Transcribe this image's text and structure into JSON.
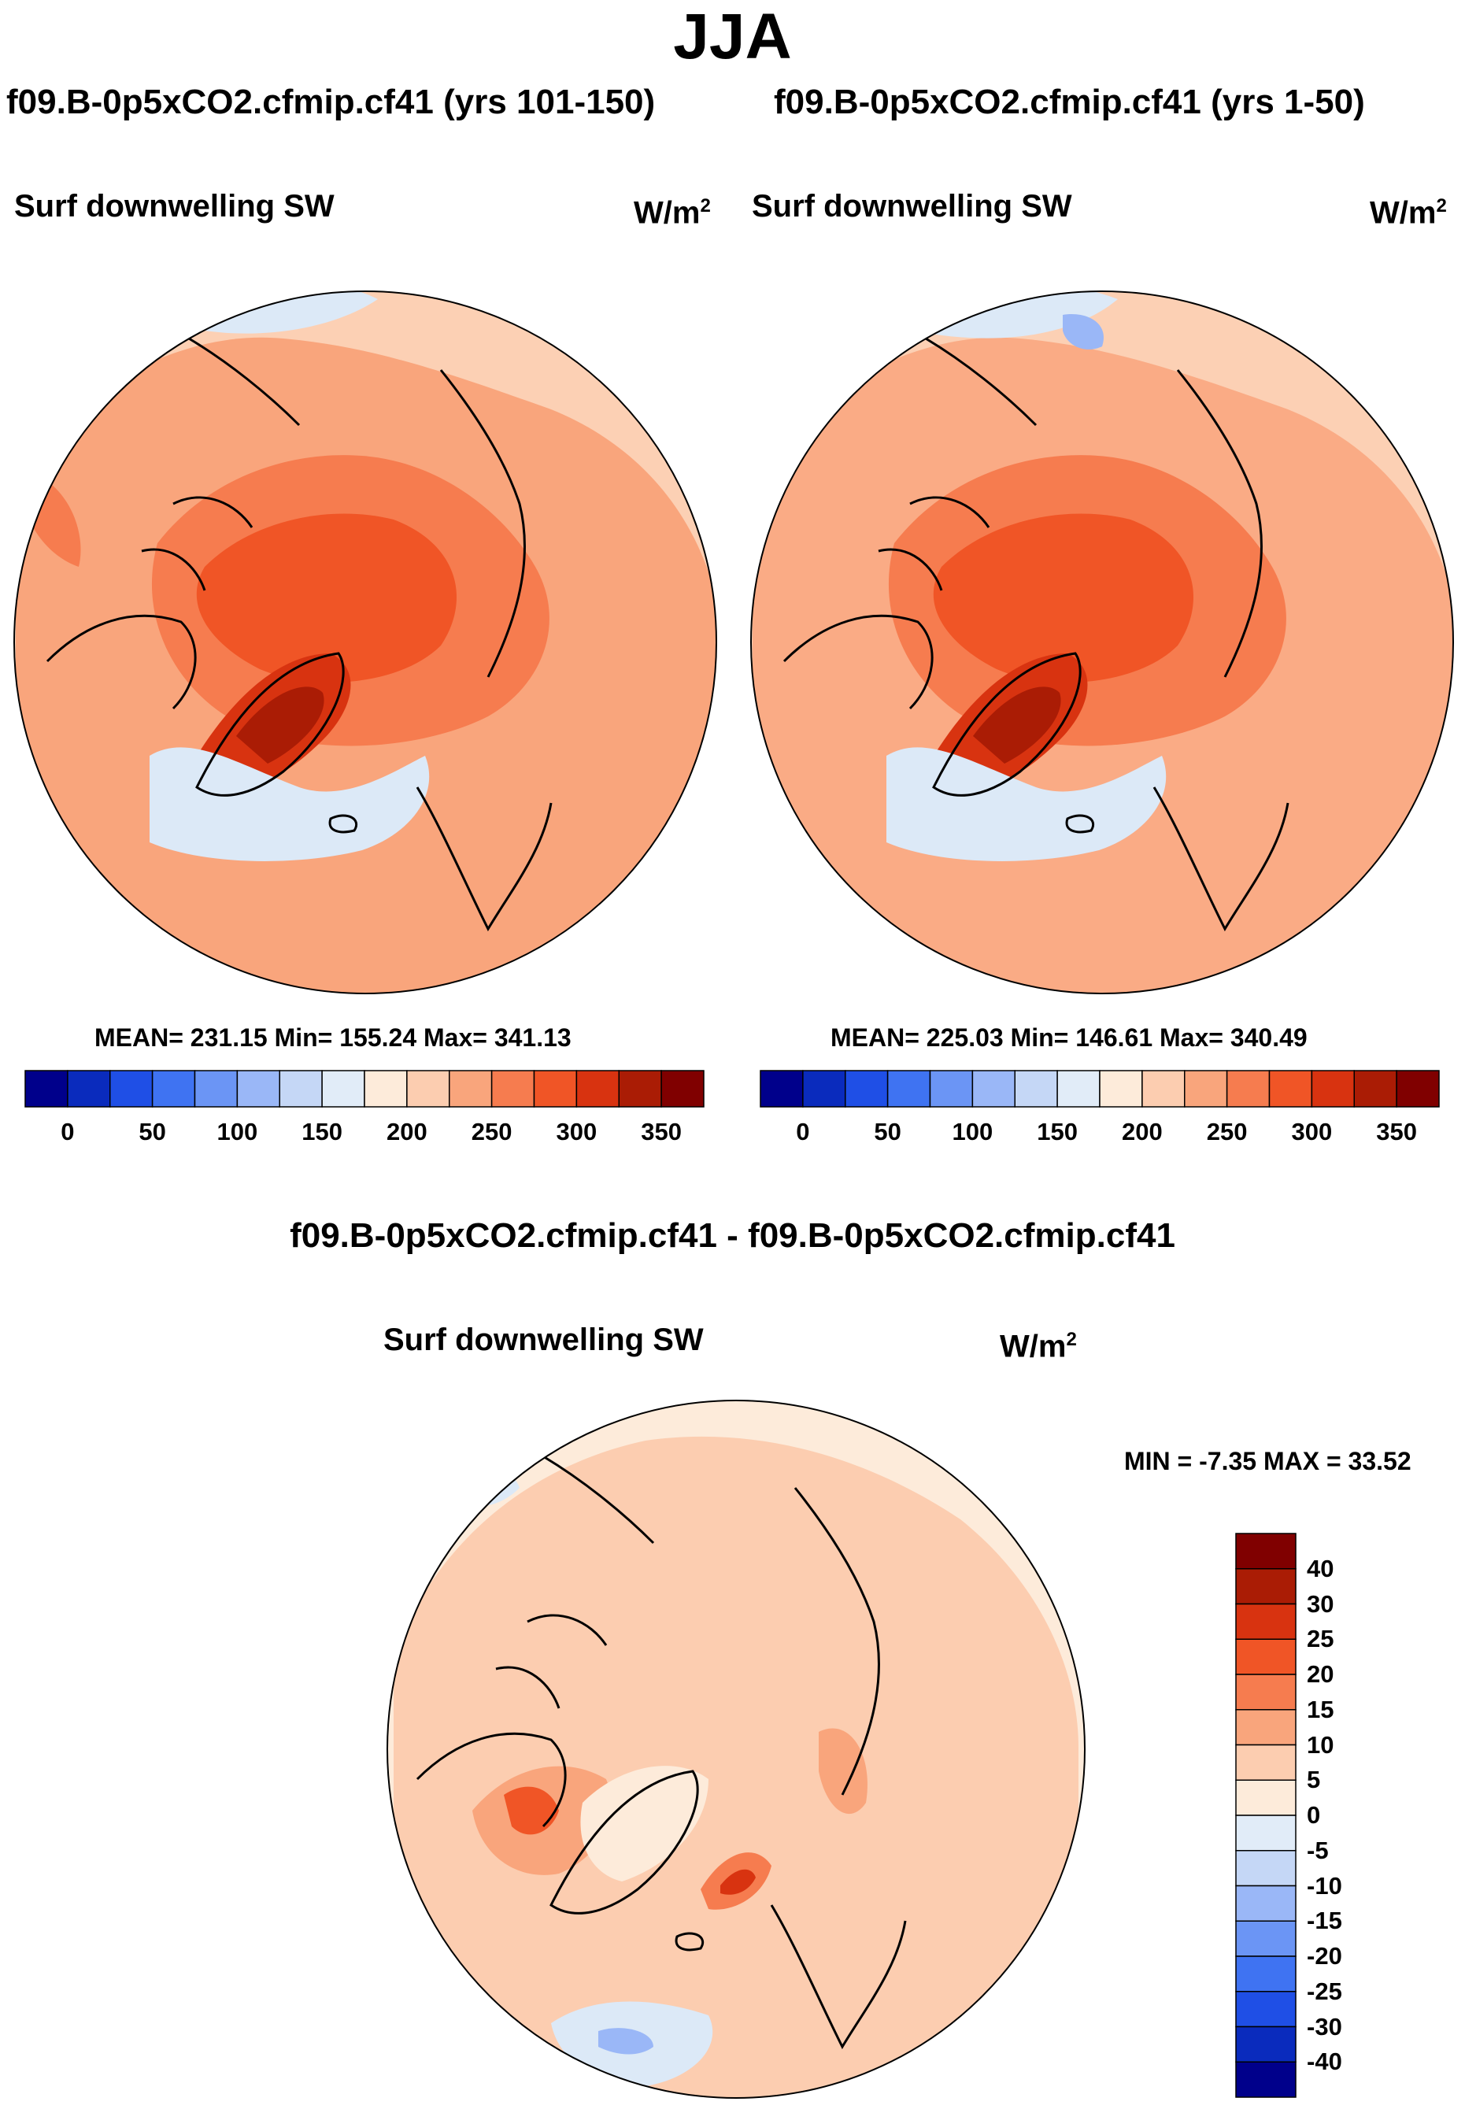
{
  "title": "JJA",
  "panels": [
    {
      "title": "f09.B-0p5xCO2.cfmip.cf41 (yrs 101-150)",
      "variable": "Surf downwelling SW",
      "units": "W/m",
      "units_exp": "2",
      "stats": "MEAN= 231.15   Min= 155.24   Max= 341.13",
      "colorbar_labels": [
        "0",
        "50",
        "100",
        "150",
        "200",
        "250",
        "300",
        "350"
      ]
    },
    {
      "title": "f09.B-0p5xCO2.cfmip.cf41 (yrs 1-50)",
      "variable": "Surf downwelling SW",
      "units": "W/m",
      "units_exp": "2",
      "stats": "MEAN= 225.03   Min= 146.61   Max= 340.49",
      "colorbar_labels": [
        "0",
        "50",
        "100",
        "150",
        "200",
        "250",
        "300",
        "350"
      ]
    }
  ],
  "diff": {
    "title": "f09.B-0p5xCO2.cfmip.cf41 - f09.B-0p5xCO2.cfmip.cf41",
    "variable": "Surf downwelling SW",
    "units": "W/m",
    "units_exp": "2",
    "stats": "MIN =  -7.35 MAX =  33.52",
    "colorbar_labels": [
      "40",
      "30",
      "25",
      "20",
      "15",
      "10",
      "5",
      "0",
      "-5",
      "-10",
      "-15",
      "-20",
      "-25",
      "-30",
      "-40"
    ]
  },
  "chart_data": [
    {
      "type": "heatmap",
      "projection": "north polar stereographic",
      "title": "f09.B-0p5xCO2.cfmip.cf41 (yrs 101-150)",
      "variable": "Surf downwelling SW",
      "units": "W/m2",
      "mean": 231.15,
      "min": 155.24,
      "max": 341.13,
      "levels": [
        0,
        25,
        50,
        75,
        100,
        125,
        150,
        175,
        200,
        225,
        250,
        275,
        300,
        325,
        350
      ],
      "colors": [
        "#00008b",
        "#0a2bbd",
        "#1f4fe6",
        "#3f73f2",
        "#6b95f5",
        "#9ab7f7",
        "#c5d7f6",
        "#e1ecf8",
        "#fdebda",
        "#fccdb0",
        "#f9a57c",
        "#f67c4f",
        "#f05526",
        "#d83310",
        "#aa1c05",
        "#800000"
      ]
    },
    {
      "type": "heatmap",
      "projection": "north polar stereographic",
      "title": "f09.B-0p5xCO2.cfmip.cf41 (yrs 1-50)",
      "variable": "Surf downwelling SW",
      "units": "W/m2",
      "mean": 225.03,
      "min": 146.61,
      "max": 340.49,
      "levels": [
        0,
        25,
        50,
        75,
        100,
        125,
        150,
        175,
        200,
        225,
        250,
        275,
        300,
        325,
        350
      ],
      "colors": [
        "#00008b",
        "#0a2bbd",
        "#1f4fe6",
        "#3f73f2",
        "#6b95f5",
        "#9ab7f7",
        "#c5d7f6",
        "#e1ecf8",
        "#fdebda",
        "#fccdb0",
        "#f9a57c",
        "#f67c4f",
        "#f05526",
        "#d83310",
        "#aa1c05",
        "#800000"
      ]
    },
    {
      "type": "heatmap",
      "projection": "north polar stereographic",
      "title": "f09.B-0p5xCO2.cfmip.cf41 - f09.B-0p5xCO2.cfmip.cf41",
      "variable": "Surf downwelling SW",
      "units": "W/m2",
      "min": -7.35,
      "max": 33.52,
      "levels": [
        -40,
        -30,
        -25,
        -20,
        -15,
        -10,
        -5,
        0,
        5,
        10,
        15,
        20,
        25,
        30,
        40
      ],
      "colors": [
        "#00008b",
        "#0a2bbd",
        "#1f4fe6",
        "#3f73f2",
        "#6b95f5",
        "#9ab7f7",
        "#c5d7f6",
        "#e1ecf8",
        "#fdebda",
        "#fccdb0",
        "#f9a57c",
        "#f67c4f",
        "#f05526",
        "#d83310",
        "#aa1c05",
        "#800000"
      ]
    }
  ]
}
